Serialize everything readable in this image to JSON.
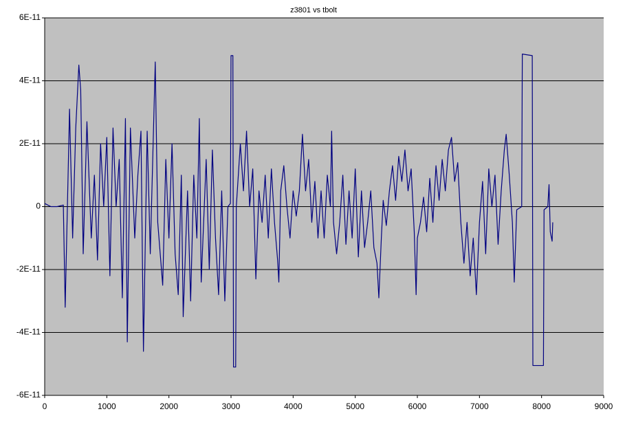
{
  "chart_data": {
    "type": "line",
    "title": "z3801 vs tbolt",
    "x": [
      0,
      100,
      200,
      300,
      330,
      400,
      450,
      500,
      550,
      580,
      620,
      680,
      750,
      800,
      850,
      900,
      950,
      1000,
      1050,
      1100,
      1150,
      1200,
      1250,
      1300,
      1330,
      1380,
      1450,
      1500,
      1550,
      1590,
      1650,
      1700,
      1780,
      1820,
      1900,
      1950,
      2000,
      2050,
      2100,
      2150,
      2200,
      2230,
      2300,
      2350,
      2400,
      2450,
      2490,
      2520,
      2600,
      2650,
      2700,
      2750,
      2800,
      2850,
      2900,
      2950,
      2990,
      3000,
      3030,
      3040,
      3075,
      3085,
      3150,
      3200,
      3250,
      3300,
      3350,
      3400,
      3450,
      3500,
      3550,
      3600,
      3650,
      3700,
      3750,
      3770,
      3800,
      3850,
      3900,
      3950,
      4000,
      4050,
      4100,
      4150,
      4200,
      4250,
      4300,
      4350,
      4400,
      4450,
      4500,
      4550,
      4600,
      4620,
      4650,
      4700,
      4750,
      4800,
      4850,
      4900,
      4950,
      5000,
      5050,
      5100,
      5150,
      5200,
      5250,
      5300,
      5350,
      5380,
      5420,
      5450,
      5500,
      5550,
      5600,
      5650,
      5700,
      5750,
      5800,
      5850,
      5900,
      5950,
      5980,
      6000,
      6050,
      6100,
      6150,
      6200,
      6250,
      6300,
      6350,
      6400,
      6450,
      6500,
      6550,
      6600,
      6650,
      6700,
      6750,
      6800,
      6850,
      6900,
      6950,
      7000,
      7050,
      7100,
      7150,
      7200,
      7250,
      7300,
      7350,
      7400,
      7430,
      7480,
      7530,
      7560,
      7600,
      7680,
      7690,
      7850,
      7860,
      8030,
      8040,
      8100,
      8120,
      8140,
      8170,
      8180
    ],
    "series": [
      {
        "color": "#000080",
        "values": [
          1e-12,
          0,
          0,
          5e-13,
          -3.2e-11,
          3.1e-11,
          -1e-11,
          2.5e-11,
          4.5e-11,
          3.7e-11,
          -1.5e-11,
          2.7e-11,
          -1e-11,
          1e-11,
          -1.7e-11,
          2e-11,
          0,
          2.2e-11,
          -2.2e-11,
          2.5e-11,
          0,
          1.5e-11,
          -2.9e-11,
          2.8e-11,
          -4.3e-11,
          2.5e-11,
          -1e-11,
          1e-11,
          2.4e-11,
          -4.6e-11,
          2.4e-11,
          -1.5e-11,
          4.6e-11,
          -5e-12,
          -2.5e-11,
          1.5e-11,
          -1e-11,
          2e-11,
          -1.5e-11,
          -2.8e-11,
          1e-11,
          -3.5e-11,
          5e-12,
          -3e-11,
          1e-11,
          -1e-11,
          2.8e-11,
          -2.4e-11,
          1.5e-11,
          -2e-11,
          1.8e-11,
          -1e-11,
          -2.8e-11,
          5e-12,
          -3e-11,
          0,
          1e-12,
          4.8e-11,
          4.8e-11,
          -5.1e-11,
          -5.1e-11,
          0,
          2e-11,
          5e-12,
          2.4e-11,
          0,
          1.2e-11,
          -2.3e-11,
          5e-12,
          -5e-12,
          1e-11,
          -1e-11,
          1.2e-11,
          -5e-12,
          -1.7e-11,
          -2.4e-11,
          5e-12,
          1.3e-11,
          0,
          -1e-11,
          5e-12,
          -3e-12,
          5e-12,
          2.3e-11,
          5e-12,
          1.5e-11,
          -5e-12,
          8e-12,
          -1e-11,
          5e-12,
          -1e-11,
          1e-11,
          0,
          2.4e-11,
          -5e-12,
          -1.5e-11,
          -5e-12,
          1e-11,
          -1.2e-11,
          5e-12,
          -1e-11,
          1.2e-11,
          -1.6e-11,
          5e-12,
          -1.3e-11,
          -5e-12,
          5e-12,
          -1.3e-11,
          -1.8e-11,
          -2.9e-11,
          -1e-11,
          2e-12,
          -6e-12,
          5e-12,
          1.3e-11,
          2e-12,
          1.6e-11,
          8e-12,
          1.8e-11,
          5e-12,
          1.2e-11,
          -8e-12,
          -2.8e-11,
          -1e-11,
          -5e-12,
          3e-12,
          -8e-12,
          9e-12,
          -5e-12,
          1.3e-11,
          2e-12,
          1.5e-11,
          5e-12,
          1.8e-11,
          2.2e-11,
          8e-12,
          1.4e-11,
          -5e-12,
          -1.8e-11,
          -5e-12,
          -2.2e-11,
          -1e-11,
          -2.8e-11,
          -5e-12,
          8e-12,
          -1.5e-11,
          1.2e-11,
          0,
          1e-11,
          -1.2e-11,
          5e-12,
          1.8e-11,
          2.3e-11,
          1e-11,
          -5e-12,
          -2.4e-11,
          -1e-12,
          0,
          4.85e-11,
          4.8e-11,
          -5.05e-11,
          -5.05e-11,
          -1e-12,
          0,
          7e-12,
          -8e-12,
          -1.1e-11,
          -5e-12
        ]
      }
    ],
    "xlim": [
      0,
      9000
    ],
    "xticks": [
      0,
      1000,
      2000,
      3000,
      4000,
      5000,
      6000,
      7000,
      8000,
      9000
    ],
    "ylim": [
      -6e-11,
      6e-11
    ],
    "yticks": [
      {
        "value": -6e-11,
        "label": "-6E-11"
      },
      {
        "value": -4e-11,
        "label": "-4E-11"
      },
      {
        "value": -2e-11,
        "label": "-2E-11"
      },
      0,
      {
        "value": 2e-11,
        "label": "2E-11"
      },
      {
        "value": 4e-11,
        "label": "4E-11"
      },
      {
        "value": 6e-11,
        "label": "6E-11"
      }
    ],
    "grid": true,
    "plot_background": "#c0c0c0"
  }
}
